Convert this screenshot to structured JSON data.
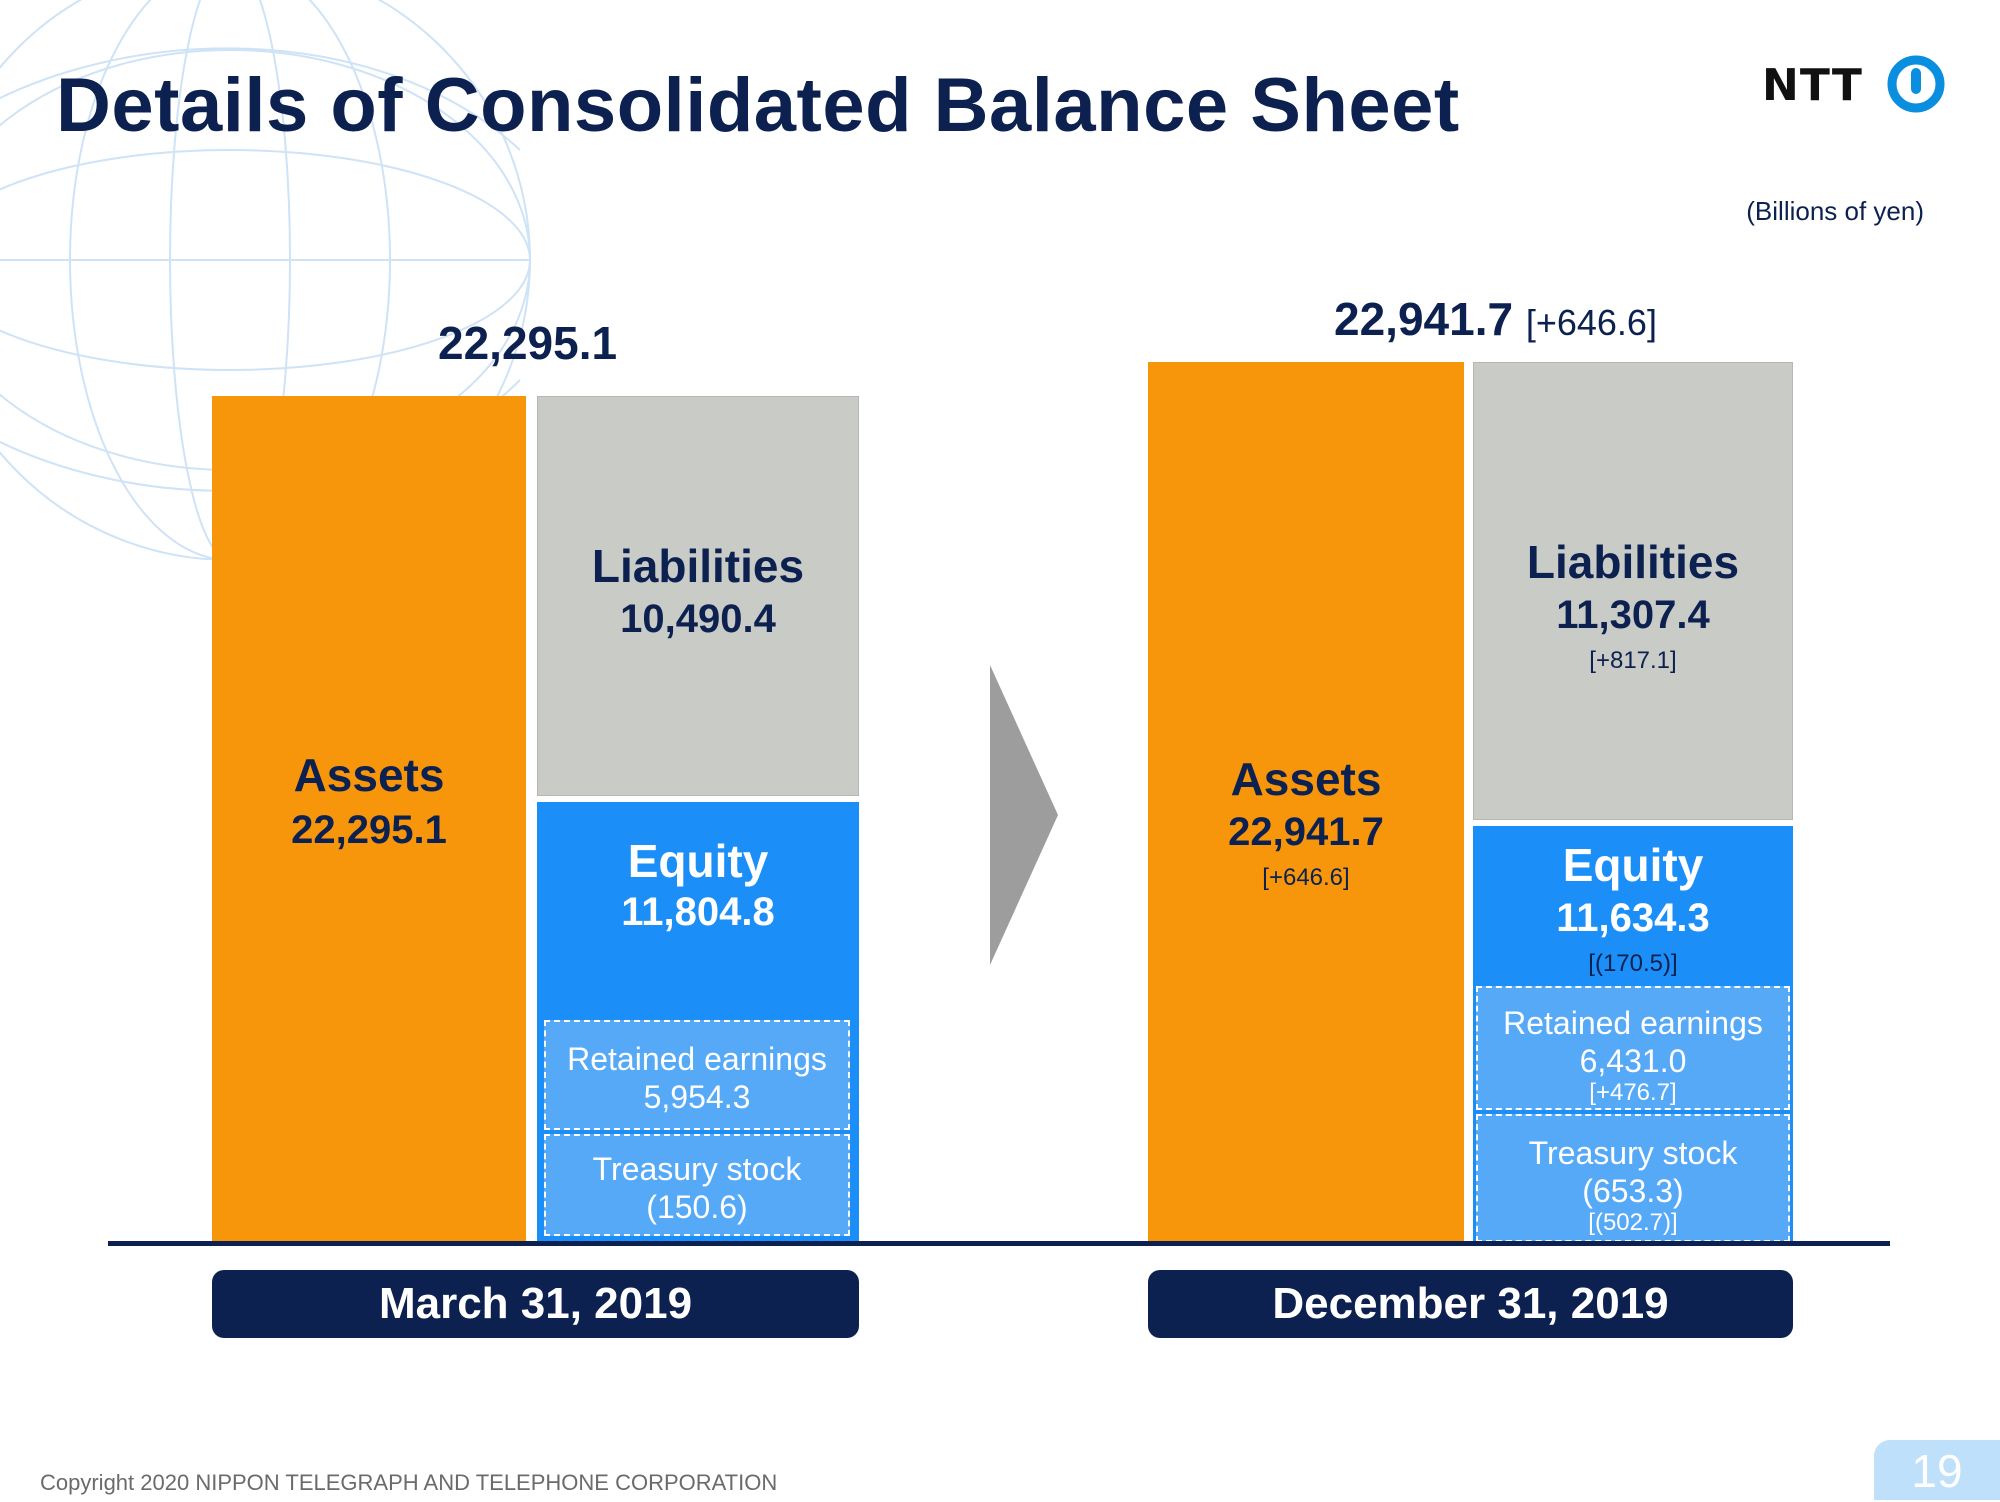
{
  "header": {
    "title": "Details of Consolidated Balance Sheet",
    "unit": "(Billions of yen)"
  },
  "logo": {
    "text": "NTT"
  },
  "chart_data": {
    "type": "bar",
    "title": "",
    "unit": "Billions of yen",
    "periods": [
      {
        "label": "March 31, 2019",
        "total": "22,295.1",
        "assets": {
          "label": "Assets",
          "value": "22,295.1"
        },
        "liabilities": {
          "label": "Liabilities",
          "value": "10,490.4"
        },
        "equity": {
          "label": "Equity",
          "value": "11,804.8"
        },
        "retained_earnings": {
          "label": "Retained earnings",
          "value": "5,954.3"
        },
        "treasury_stock": {
          "label": "Treasury stock",
          "value": "(150.6)"
        }
      },
      {
        "label": "December 31, 2019",
        "total": "22,941.7",
        "total_change": "[+646.6]",
        "assets": {
          "label": "Assets",
          "value": "22,941.7",
          "change": "[+646.6]"
        },
        "liabilities": {
          "label": "Liabilities",
          "value": "11,307.4",
          "change": "[+817.1]"
        },
        "equity": {
          "label": "Equity",
          "value": "11,634.3",
          "change": "[(170.5)]"
        },
        "retained_earnings": {
          "label": "Retained earnings",
          "value": "6,431.0",
          "change": "[+476.7]"
        },
        "treasury_stock": {
          "label": "Treasury stock",
          "value": "(653.3)",
          "change": "[(502.7)]"
        }
      }
    ]
  },
  "footer": {
    "copyright": "Copyright 2020 NIPPON TELEGRAPH AND TELEPHONE CORPORATION",
    "page": "19"
  },
  "colors": {
    "assets": "#f7960a",
    "liabilities": "#c9cbc7",
    "equity": "#1b8ef7",
    "subbox": "#55a9f7",
    "navy": "#0d2150"
  }
}
